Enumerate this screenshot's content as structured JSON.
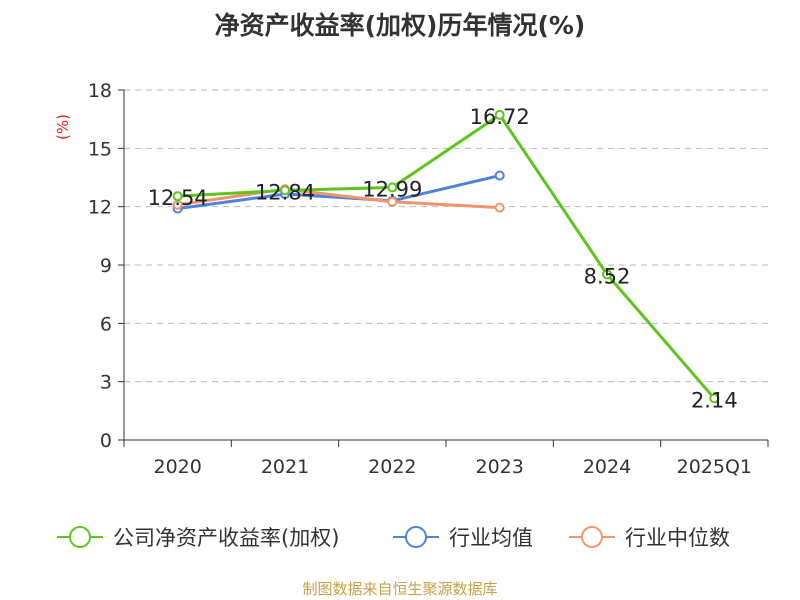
{
  "chart_data": {
    "type": "line",
    "title": "净资产收益率(加权)历年情况(%)",
    "ylabel": "(%)",
    "xlabel": "",
    "categories": [
      "2020",
      "2021",
      "2022",
      "2023",
      "2024",
      "2025Q1"
    ],
    "yticks": [
      "0",
      "3",
      "6",
      "9",
      "12",
      "15",
      "18"
    ],
    "ylim": [
      0,
      18
    ],
    "grid": true,
    "legend_position": "bottom",
    "series": [
      {
        "name": "公司净资产收益率(加权)",
        "color": "#5fc41e",
        "values": [
          12.54,
          12.84,
          12.99,
          16.72,
          8.52,
          2.14
        ],
        "labels": [
          "12.54",
          "12.84",
          "12.99",
          "16.72",
          "8.52",
          "2.14"
        ]
      },
      {
        "name": "行业均值",
        "color": "#4f82d9",
        "values": [
          11.9,
          12.65,
          12.3,
          13.6,
          null,
          null
        ]
      },
      {
        "name": "行业中位数",
        "color": "#f19468",
        "values": [
          12.1,
          12.9,
          12.25,
          11.95,
          null,
          null
        ]
      }
    ]
  },
  "source": "制图数据来自恒生聚源数据库",
  "colors": {
    "title": "#333333",
    "ylabel": "#e02020",
    "source": "#c8a04a",
    "axis": "#333333",
    "grid": "#bbbbbb"
  }
}
